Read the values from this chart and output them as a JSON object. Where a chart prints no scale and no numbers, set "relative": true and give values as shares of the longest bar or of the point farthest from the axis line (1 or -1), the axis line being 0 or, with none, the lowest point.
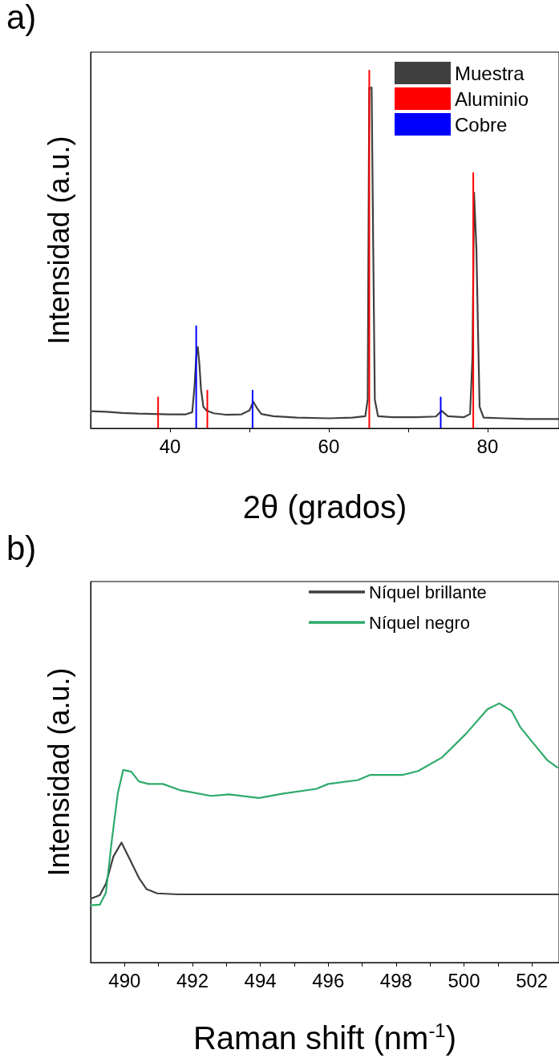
{
  "chart_data": [
    {
      "type": "line",
      "annotations": [
        "a)"
      ],
      "xlabel": "2θ (grados)",
      "ylabel": "Intensidad (a.u.)",
      "relative": true,
      "xlim": [
        30,
        89
      ],
      "xticks": [
        40,
        {
          "value": 50,
          "label": null
        },
        60,
        {
          "value": 70,
          "label": null
        },
        80
      ],
      "legend": "top right",
      "grid": false,
      "series": [
        {
          "name": "Muestra",
          "color": "#404040",
          "x": [
            30,
            32,
            34,
            36,
            38,
            40,
            42,
            42.8,
            43.1,
            43.3,
            43.5,
            43.7,
            43.9,
            44.2,
            44.6,
            45.5,
            47,
            49,
            50,
            50.5,
            51,
            51.5,
            53,
            56,
            60,
            63,
            64.6,
            64.9,
            65.1,
            65.4,
            65.6,
            65.8,
            66.2,
            68,
            71,
            73.5,
            74.2,
            75,
            77,
            77.8,
            78.1,
            78.3,
            78.6,
            78.8,
            79,
            79.5,
            82,
            85,
            89
          ],
          "values": [
            0.048,
            0.046,
            0.043,
            0.041,
            0.04,
            0.039,
            0.039,
            0.045,
            0.12,
            0.2,
            0.227,
            0.18,
            0.11,
            0.06,
            0.05,
            0.042,
            0.038,
            0.039,
            0.05,
            0.074,
            0.055,
            0.04,
            0.034,
            0.03,
            0.028,
            0.03,
            0.034,
            0.08,
            0.95,
            0.951,
            0.5,
            0.08,
            0.034,
            0.031,
            0.031,
            0.033,
            0.049,
            0.034,
            0.031,
            0.04,
            0.2,
            0.658,
            0.5,
            0.27,
            0.06,
            0.03,
            0.028,
            0.026,
            0.026
          ]
        },
        {
          "name": "Aluminio",
          "type": "bar",
          "color": "#ff0000",
          "x": [
            38.5,
            44.7,
            65.1,
            78.2
          ],
          "values": [
            0.088,
            0.107,
            1,
            0.714
          ]
        },
        {
          "name": "Cobre",
          "type": "bar",
          "color": "#0000ff",
          "x": [
            43.3,
            50.4,
            74.1
          ],
          "values": [
            0.287,
            0.107,
            0.088
          ]
        }
      ]
    },
    {
      "type": "line",
      "annotations": [
        "b)"
      ],
      "xlabel": "Raman shift (nm$^{-1}$)",
      "ylabel": "Intensidad (a.u.)",
      "relative": true,
      "xlim": [
        489,
        502.8
      ],
      "xticks": [
        490,
        {
          "value": 491,
          "label": null
        },
        492,
        {
          "value": 493,
          "label": null
        },
        494,
        {
          "value": 495,
          "label": null
        },
        496,
        {
          "value": 497,
          "label": null
        },
        498,
        {
          "value": 499,
          "label": null
        },
        500,
        {
          "value": 501,
          "label": null
        },
        502
      ],
      "legend": "top right",
      "grid": false,
      "series": [
        {
          "name": "Níquel brillante",
          "color": "#404040",
          "x": [
            489,
            489.27,
            489.45,
            489.67,
            489.91,
            490.16,
            490.42,
            490.65,
            490.96,
            491.58,
            494,
            497,
            500,
            502.8
          ],
          "values": [
            0.246,
            0.26,
            0.304,
            0.409,
            0.463,
            0.397,
            0.327,
            0.283,
            0.267,
            0.263,
            0.263,
            0.263,
            0.263,
            0.263
          ]
        },
        {
          "name": "Níquel negro",
          "color": "#2eaa6a",
          "x": [
            489,
            489.27,
            489.45,
            489.63,
            489.8,
            489.96,
            490.2,
            490.42,
            490.7,
            491.13,
            491.66,
            492.55,
            493.08,
            493.96,
            494.67,
            495.65,
            496,
            496.88,
            497.24,
            498.2,
            498.65,
            499.36,
            500.07,
            500.69,
            501.04,
            501.4,
            501.66,
            502.02,
            502.46,
            502.77
          ],
          "values": [
            0.221,
            0.223,
            0.269,
            0.478,
            0.652,
            0.743,
            0.736,
            0.699,
            0.689,
            0.689,
            0.664,
            0.643,
            0.649,
            0.635,
            0.652,
            0.67,
            0.689,
            0.704,
            0.724,
            0.724,
            0.739,
            0.792,
            0.884,
            0.977,
            1,
            0.971,
            0.908,
            0.85,
            0.78,
            0.751
          ]
        }
      ]
    }
  ]
}
